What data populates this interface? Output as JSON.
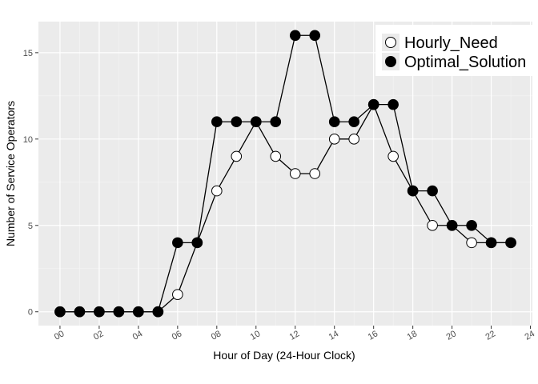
{
  "chart_data": {
    "type": "line",
    "xlabel": "Hour of Day (24-Hour Clock)",
    "ylabel": "Number of Service Operators",
    "xlim": [
      -1.1,
      24.1
    ],
    "ylim": [
      -0.8,
      16.8
    ],
    "x_ticks": [
      0,
      2,
      4,
      6,
      8,
      10,
      12,
      14,
      16,
      18,
      20,
      22,
      24
    ],
    "x_tick_labels": [
      "00",
      "02",
      "04",
      "06",
      "08",
      "10",
      "12",
      "14",
      "16",
      "18",
      "20",
      "22",
      "24"
    ],
    "y_ticks": [
      0,
      5,
      10,
      15
    ],
    "y_tick_labels": [
      "0",
      "5",
      "10",
      "15"
    ],
    "grid": true,
    "legend_position": "top-right",
    "x": [
      0,
      1,
      2,
      3,
      4,
      5,
      6,
      7,
      8,
      9,
      10,
      11,
      12,
      13,
      14,
      15,
      16,
      17,
      18,
      19,
      20,
      21,
      22,
      23
    ],
    "series": [
      {
        "name": "Hourly_Need",
        "marker": "open-circle",
        "fill": "#ffffff",
        "values": [
          0,
          0,
          0,
          0,
          0,
          0,
          1,
          4,
          7,
          9,
          11,
          9,
          8,
          8,
          10,
          10,
          12,
          9,
          7,
          5,
          5,
          4,
          4,
          4
        ]
      },
      {
        "name": "Optimal_Solution",
        "marker": "filled-circle",
        "fill": "#000000",
        "values": [
          0,
          0,
          0,
          0,
          0,
          0,
          4,
          4,
          11,
          11,
          11,
          11,
          16,
          16,
          11,
          11,
          12,
          12,
          7,
          7,
          5,
          5,
          4,
          4
        ]
      }
    ],
    "colors": {
      "panel": "#ebebeb",
      "grid_major": "#ffffff",
      "line": "#000000"
    }
  }
}
